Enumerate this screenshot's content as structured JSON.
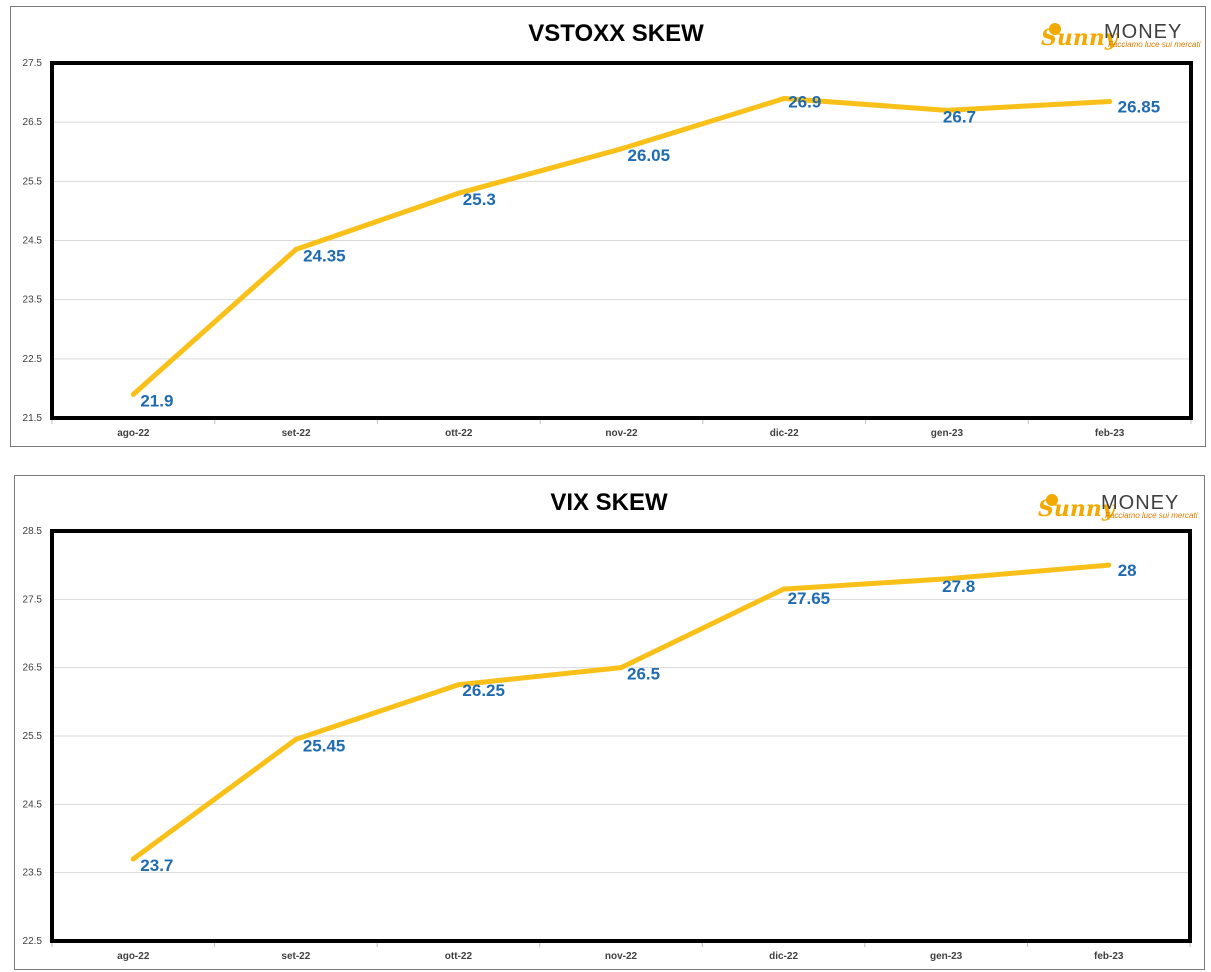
{
  "logo": {
    "name_part1": "Sunny",
    "name_part2": "MONEY",
    "tagline": "Facciamo luce sui mercati"
  },
  "colors": {
    "line": "#F9C01A",
    "data_label": "#1F6BB0",
    "grid": "#D9D9D9",
    "plot_frame": "#000000"
  },
  "chart_data": [
    {
      "type": "line",
      "title": "VSTOXX SKEW",
      "categories": [
        "ago-22",
        "set-22",
        "ott-22",
        "nov-22",
        "dic-22",
        "gen-23",
        "feb-23"
      ],
      "values": [
        21.9,
        24.35,
        25.3,
        26.05,
        26.9,
        26.7,
        26.85
      ],
      "data_labels": [
        "21.9",
        "24.35",
        "25.3",
        "26.05",
        "26.9",
        "26.7",
        "26.85"
      ],
      "ylim": [
        21.5,
        27.5
      ],
      "yticks": [
        "21.5",
        "22.5",
        "23.5",
        "24.5",
        "25.5",
        "26.5",
        "27.5"
      ],
      "xlabel": "",
      "ylabel": "",
      "grid": true,
      "legend": "none"
    },
    {
      "type": "line",
      "title": "VIX SKEW",
      "categories": [
        "ago-22",
        "set-22",
        "ott-22",
        "nov-22",
        "dic-22",
        "gen-23",
        "feb-23"
      ],
      "values": [
        23.7,
        25.45,
        26.25,
        26.5,
        27.65,
        27.8,
        28
      ],
      "data_labels": [
        "23.7",
        "25.45",
        "26.25",
        "26.5",
        "27.65",
        "27.8",
        "28"
      ],
      "ylim": [
        22.5,
        28.5
      ],
      "yticks": [
        "22.5",
        "23.5",
        "24.5",
        "25.5",
        "26.5",
        "27.5",
        "28.5"
      ],
      "xlabel": "",
      "ylabel": "",
      "grid": true,
      "legend": "none"
    }
  ]
}
